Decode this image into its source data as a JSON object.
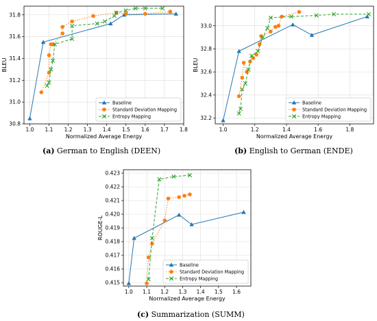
{
  "figure": {
    "captions": [
      {
        "label": "(a)",
        "text": "German to English (DEEN)"
      },
      {
        "label": "(b)",
        "text": "English to German (ENDE)"
      },
      {
        "label": "(c)",
        "text": "Summarization (SUMM)"
      }
    ]
  },
  "chart_data": [
    {
      "type": "line",
      "title": "",
      "xlabel": "Normalized Average Energy",
      "ylabel": "BLEU",
      "xlim": [
        0.97,
        1.8
      ],
      "ylim": [
        30.8,
        31.88
      ],
      "xticks": [
        1.0,
        1.1,
        1.2,
        1.3,
        1.4,
        1.5,
        1.6,
        1.7,
        1.8
      ],
      "xtick_labels": [
        "1.0",
        "1.1",
        "1.2",
        "1.3",
        "1.4",
        "1.5",
        "1.6",
        "1.7",
        "1.8"
      ],
      "yticks": [
        30.8,
        31.0,
        31.2,
        31.4,
        31.6,
        31.8
      ],
      "ytick_labels": [
        "30.8",
        "31.0",
        "31.2",
        "31.4",
        "31.6",
        "31.8"
      ],
      "grid": true,
      "legend": "lower-right",
      "series": [
        {
          "name": "Baseline",
          "color": "#1f77b4",
          "marker": "triangle",
          "linestyle": "solid",
          "x": [
            1.0,
            1.07,
            1.42,
            1.49,
            1.76
          ],
          "y": [
            30.85,
            31.55,
            31.72,
            31.8,
            31.81
          ]
        },
        {
          "name": "Standard Deviation Mapping",
          "color": "#ff7f0e",
          "marker": "circle",
          "linestyle": "dotted",
          "x": [
            1.06,
            1.1,
            1.1,
            1.11,
            1.12,
            1.17,
            1.17,
            1.22,
            1.33,
            1.45,
            1.5,
            1.6,
            1.73
          ],
          "y": [
            31.09,
            31.27,
            31.43,
            31.53,
            31.53,
            31.63,
            31.69,
            31.74,
            31.79,
            31.82,
            31.81,
            31.81,
            31.83
          ]
        },
        {
          "name": "Entropy Mapping",
          "color": "#2ca02c",
          "marker": "x",
          "linestyle": "dashed",
          "x": [
            1.09,
            1.1,
            1.11,
            1.12,
            1.13,
            1.22,
            1.22,
            1.35,
            1.39,
            1.44,
            1.45,
            1.5,
            1.55,
            1.6,
            1.69
          ],
          "y": [
            31.15,
            31.18,
            31.3,
            31.38,
            31.53,
            31.58,
            31.7,
            31.72,
            31.74,
            31.79,
            31.82,
            31.84,
            31.86,
            31.86,
            31.86
          ]
        }
      ]
    },
    {
      "type": "line",
      "title": "",
      "xlabel": "Normalized Average Energy",
      "ylabel": "BLEU",
      "xlim": [
        0.95,
        1.95
      ],
      "ylim": [
        32.15,
        33.17
      ],
      "xticks": [
        1.0,
        1.2,
        1.4,
        1.6,
        1.8
      ],
      "xtick_labels": [
        "1.0",
        "1.2",
        "1.4",
        "1.6",
        "1.8"
      ],
      "yticks": [
        32.2,
        32.4,
        32.6,
        32.8,
        33.0
      ],
      "ytick_labels": [
        "32.2",
        "32.4",
        "32.6",
        "32.8",
        "33.0"
      ],
      "grid": true,
      "legend": "lower-right",
      "series": [
        {
          "name": "Baseline",
          "color": "#1f77b4",
          "marker": "triangle",
          "linestyle": "solid",
          "x": [
            1.0,
            1.1,
            1.44,
            1.56,
            1.91
          ],
          "y": [
            32.18,
            32.78,
            33.01,
            32.92,
            33.08
          ]
        },
        {
          "name": "Standard Deviation Mapping",
          "color": "#ff7f0e",
          "marker": "circle",
          "linestyle": "dotted",
          "x": [
            1.1,
            1.12,
            1.13,
            1.15,
            1.17,
            1.19,
            1.21,
            1.23,
            1.24,
            1.3,
            1.33,
            1.35,
            1.37,
            1.48
          ],
          "y": [
            32.39,
            32.55,
            32.68,
            32.6,
            32.69,
            32.72,
            32.75,
            32.84,
            32.91,
            32.95,
            32.99,
            33.0,
            33.08,
            33.12
          ]
        },
        {
          "name": "Entropy Mapping",
          "color": "#2ca02c",
          "marker": "x",
          "linestyle": "dashed",
          "x": [
            1.1,
            1.11,
            1.12,
            1.14,
            1.16,
            1.18,
            1.22,
            1.25,
            1.28,
            1.3,
            1.43,
            1.59,
            1.7,
            1.92
          ],
          "y": [
            32.24,
            32.28,
            32.45,
            32.5,
            32.62,
            32.74,
            32.78,
            32.9,
            32.98,
            33.07,
            33.08,
            33.09,
            33.1,
            33.1
          ]
        }
      ]
    },
    {
      "type": "line",
      "title": "",
      "xlabel": "Normalized Average Energy",
      "ylabel": "ROUGE-L",
      "xlim": [
        0.97,
        1.68
      ],
      "ylim": [
        0.41475,
        0.42325
      ],
      "xticks": [
        1.0,
        1.1,
        1.2,
        1.3,
        1.4,
        1.5,
        1.6
      ],
      "xtick_labels": [
        "1.0",
        "1.1",
        "1.2",
        "1.3",
        "1.4",
        "1.5",
        "1.6"
      ],
      "yticks": [
        0.415,
        0.416,
        0.417,
        0.418,
        0.419,
        0.42,
        0.421,
        0.422,
        0.423
      ],
      "ytick_labels": [
        "0.415",
        "0.416",
        "0.417",
        "0.418",
        "0.419",
        "0.420",
        "0.421",
        "0.422",
        "0.423"
      ],
      "grid": true,
      "legend": "lower-right",
      "series": [
        {
          "name": "Baseline",
          "color": "#1f77b4",
          "marker": "triangle",
          "linestyle": "solid",
          "x": [
            1.0,
            1.03,
            1.28,
            1.35,
            1.64
          ],
          "y": [
            0.41495,
            0.41825,
            0.41995,
            0.41925,
            0.42015
          ]
        },
        {
          "name": "Standard Deviation Mapping",
          "color": "#ff7f0e",
          "marker": "circle",
          "linestyle": "dotted",
          "x": [
            1.1,
            1.11,
            1.13,
            1.2,
            1.22,
            1.28,
            1.31,
            1.34
          ],
          "y": [
            0.41495,
            0.41685,
            0.41785,
            0.41955,
            0.42115,
            0.42125,
            0.42135,
            0.42145
          ]
        },
        {
          "name": "Entropy Mapping",
          "color": "#2ca02c",
          "marker": "x",
          "linestyle": "dashed",
          "x": [
            1.11,
            1.13,
            1.17,
            1.25,
            1.34
          ],
          "y": [
            0.41525,
            0.41825,
            0.42255,
            0.42275,
            0.42285
          ]
        }
      ]
    }
  ]
}
